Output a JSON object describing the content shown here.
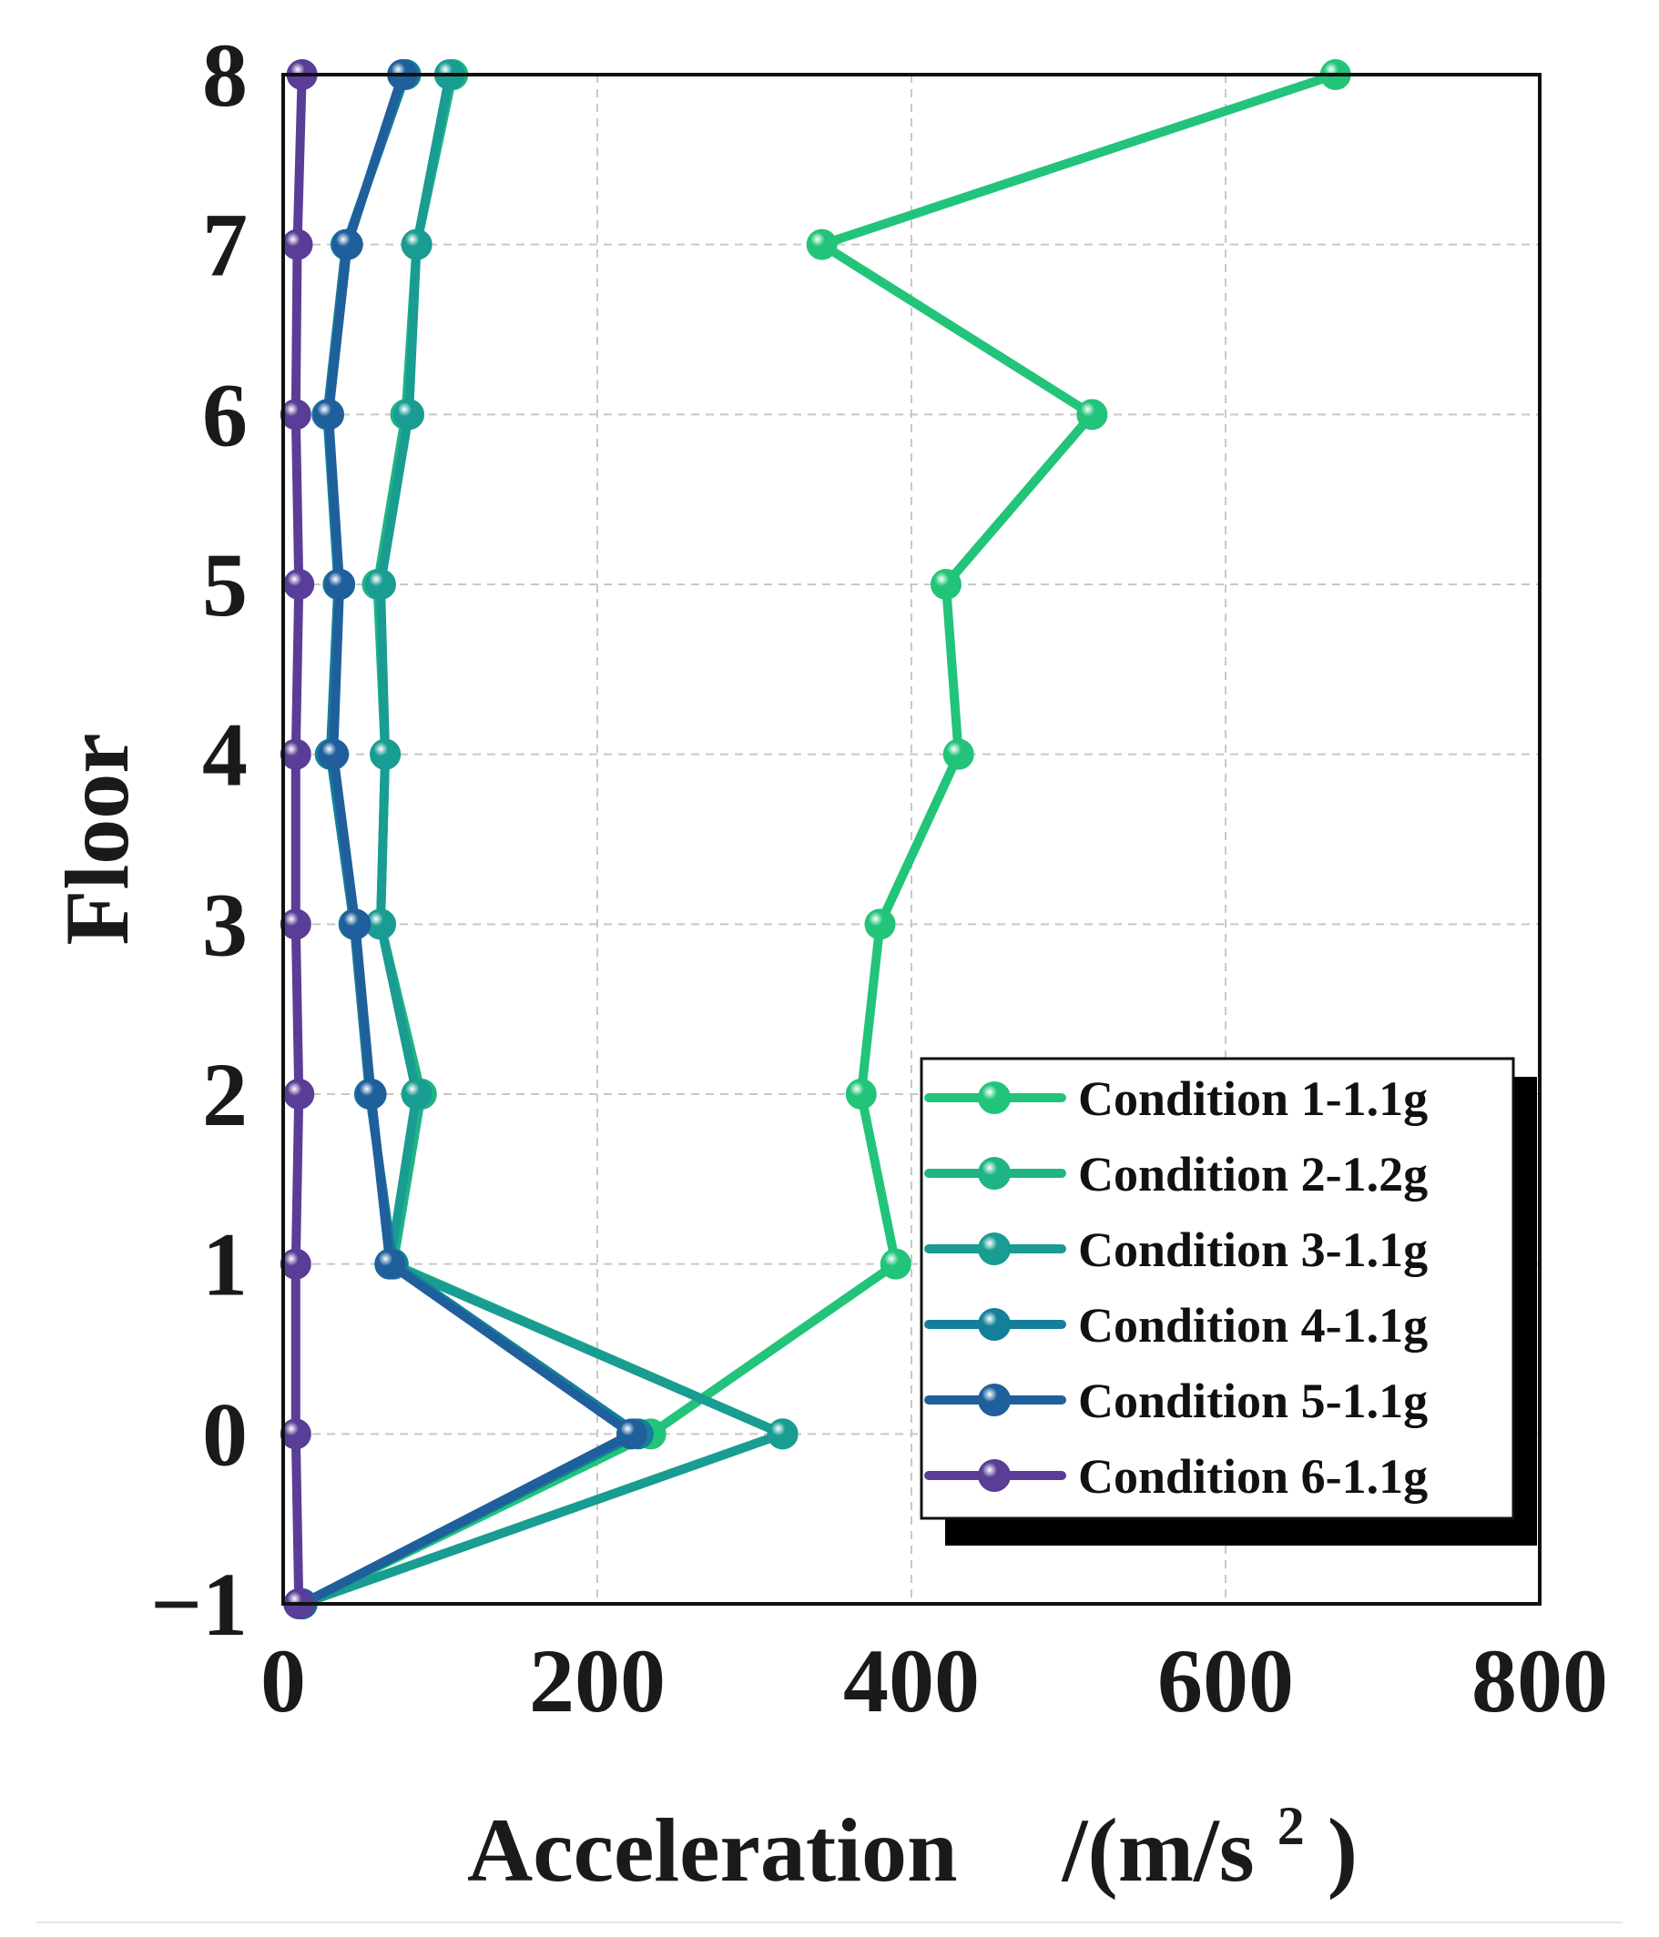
{
  "chart_data": {
    "type": "line",
    "orientation": "horizontal-profile",
    "xlabel": "Acceleration",
    "xlabel_unit_prefix": "/(m/s",
    "xlabel_unit_sup": "2",
    "xlabel_unit_suffix": ")",
    "ylabel": "Floor",
    "xlim": [
      0,
      800
    ],
    "ylim": [
      -1,
      8
    ],
    "x_ticks": [
      "0",
      "200",
      "400",
      "600",
      "800"
    ],
    "x_tick_values": [
      0,
      200,
      400,
      600,
      800
    ],
    "y_ticks": [
      "−1",
      "0",
      "1",
      "2",
      "3",
      "4",
      "5",
      "6",
      "7",
      "8"
    ],
    "y_tick_values": [
      -1,
      0,
      1,
      2,
      3,
      4,
      5,
      6,
      7,
      8
    ],
    "grid": true,
    "legend_position": "bottom-right",
    "floors": [
      -1,
      0,
      1,
      2,
      3,
      4,
      5,
      6,
      7,
      8
    ],
    "series": [
      {
        "name": "Condition 1-1.1g",
        "color": "#22c47a",
        "values": [
          12,
          234,
          390,
          368,
          380,
          430,
          422,
          515,
          343,
          670
        ]
      },
      {
        "name": "Condition 2-1.2g",
        "color": "#1fb486",
        "values": [
          12,
          318,
          70,
          88,
          62,
          65,
          60,
          78,
          85,
          108
        ]
      },
      {
        "name": "Condition 3-1.1g",
        "color": "#199c92",
        "values": [
          12,
          318,
          68,
          85,
          62,
          65,
          62,
          80,
          85,
          106
        ]
      },
      {
        "name": "Condition 4-1.1g",
        "color": "#147f99",
        "values": [
          12,
          226,
          70,
          55,
          45,
          30,
          35,
          28,
          40,
          78
        ]
      },
      {
        "name": "Condition 5-1.1g",
        "color": "#1f5f9c",
        "values": [
          12,
          222,
          68,
          56,
          46,
          32,
          36,
          29,
          41,
          76
        ]
      },
      {
        "name": "Condition 6-1.1g",
        "color": "#5a3d96",
        "values": [
          10,
          8,
          8,
          10,
          8,
          8,
          10,
          8,
          9,
          12
        ]
      }
    ]
  }
}
